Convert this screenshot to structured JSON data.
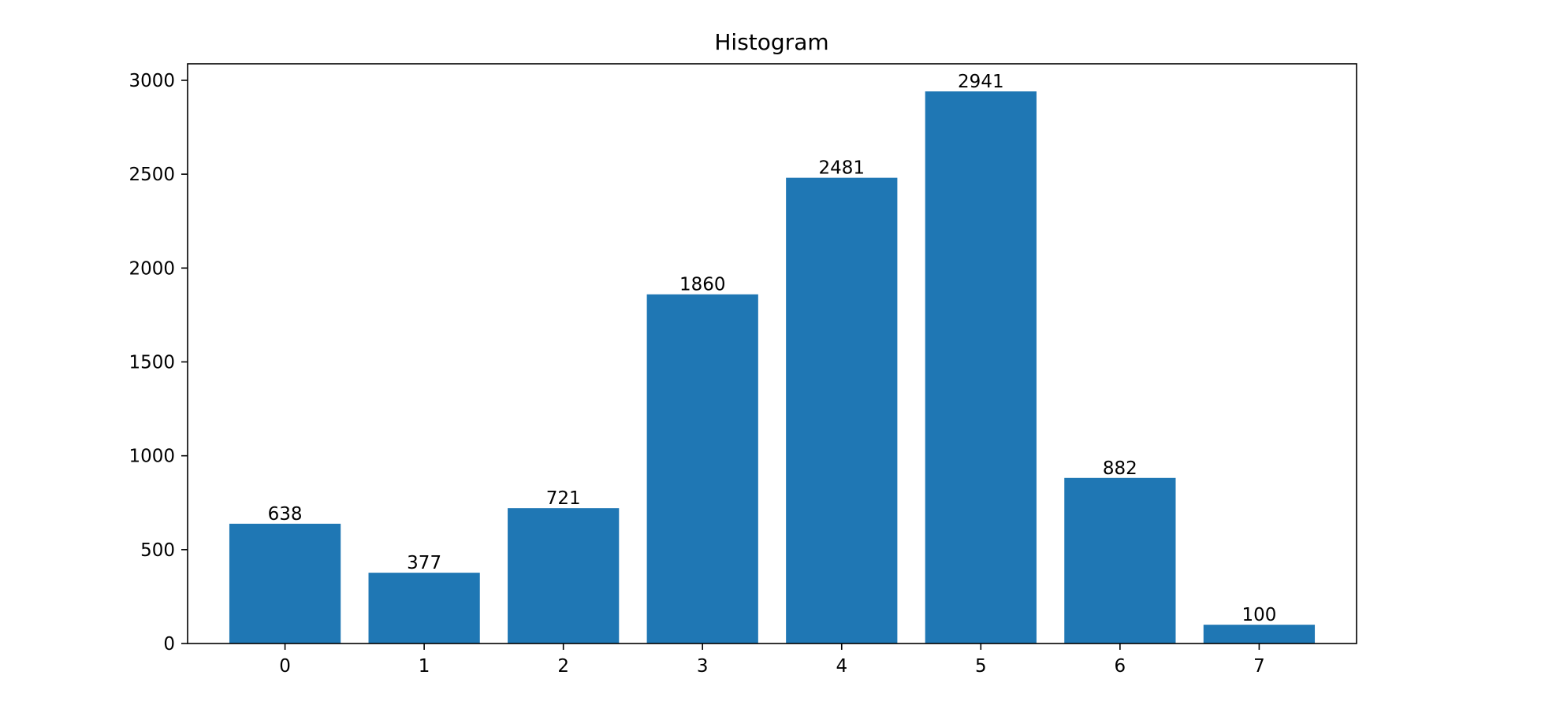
{
  "chart_data": {
    "type": "bar",
    "title": "Histogram",
    "xlabel": "",
    "ylabel": "",
    "categories": [
      "0",
      "1",
      "2",
      "3",
      "4",
      "5",
      "6",
      "7"
    ],
    "values": [
      638,
      377,
      721,
      1860,
      2481,
      2941,
      882,
      100
    ],
    "data_labels": [
      "638",
      "377",
      "721",
      "1860",
      "2481",
      "2941",
      "882",
      "100"
    ],
    "y_ticks": [
      0,
      500,
      1000,
      1500,
      2000,
      2500,
      3000
    ],
    "y_tick_labels": [
      "0",
      "500",
      "1000",
      "1500",
      "2000",
      "2500",
      "3000"
    ],
    "ylim": [
      0,
      3088
    ],
    "xlim": [
      -0.7,
      7.7
    ],
    "grid": false,
    "bar_color": "#1f77b4"
  }
}
